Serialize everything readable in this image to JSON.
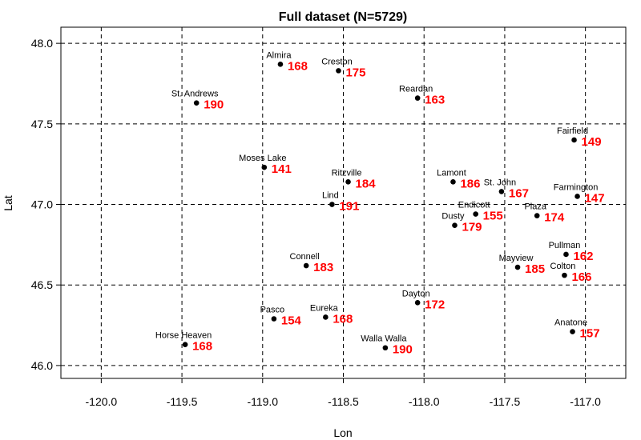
{
  "chart_data": {
    "type": "scatter",
    "title": "Full dataset (N=5729)",
    "xlabel": "Lon",
    "ylabel": "Lat",
    "xlim": [
      -120.25,
      -116.75
    ],
    "ylim": [
      45.92,
      48.1
    ],
    "xticks": [
      -120.0,
      -119.5,
      -119.0,
      -118.5,
      -118.0,
      -117.5,
      -117.0
    ],
    "xtick_labels": [
      "-120.0",
      "-119.5",
      "-119.0",
      "-118.5",
      "-118.0",
      "-117.5",
      "-117.0"
    ],
    "yticks": [
      46.0,
      46.5,
      47.0,
      47.5,
      48.0
    ],
    "ytick_labels": [
      "46.0",
      "46.5",
      "47.0",
      "47.5",
      "48.0"
    ],
    "grid": true,
    "point_color": "#000000",
    "value_color": "#ff0000",
    "points": [
      {
        "name": "Almira",
        "lon": -118.89,
        "lat": 47.87,
        "value": "168"
      },
      {
        "name": "Creston",
        "lon": -118.53,
        "lat": 47.83,
        "value": "175"
      },
      {
        "name": "St. Andrews",
        "lon": -119.41,
        "lat": 47.63,
        "value": "190"
      },
      {
        "name": "Reardan",
        "lon": -118.04,
        "lat": 47.66,
        "value": "163"
      },
      {
        "name": "Fairfield",
        "lon": -117.07,
        "lat": 47.4,
        "value": "149"
      },
      {
        "name": "Moses Lake",
        "lon": -118.99,
        "lat": 47.23,
        "value": "141"
      },
      {
        "name": "Ritzville",
        "lon": -118.47,
        "lat": 47.14,
        "value": "184"
      },
      {
        "name": "Lamont",
        "lon": -117.82,
        "lat": 47.14,
        "value": "186"
      },
      {
        "name": "St. John",
        "lon": -117.52,
        "lat": 47.08,
        "value": "167"
      },
      {
        "name": "Farmington",
        "lon": -117.05,
        "lat": 47.05,
        "value": "147"
      },
      {
        "name": "Lind",
        "lon": -118.57,
        "lat": 47.0,
        "value": "191"
      },
      {
        "name": "Endicott",
        "lon": -117.68,
        "lat": 46.94,
        "value": "155"
      },
      {
        "name": "Plaza",
        "lon": -117.3,
        "lat": 46.93,
        "value": "174"
      },
      {
        "name": "Dusty",
        "lon": -117.81,
        "lat": 46.87,
        "value": "179"
      },
      {
        "name": "Pullman",
        "lon": -117.12,
        "lat": 46.69,
        "value": "162"
      },
      {
        "name": "Connell",
        "lon": -118.73,
        "lat": 46.62,
        "value": "183"
      },
      {
        "name": "Mayview",
        "lon": -117.42,
        "lat": 46.61,
        "value": "185"
      },
      {
        "name": "Colton",
        "lon": -117.13,
        "lat": 46.56,
        "value": "166"
      },
      {
        "name": "Dayton",
        "lon": -118.04,
        "lat": 46.39,
        "value": "172"
      },
      {
        "name": "Pasco",
        "lon": -118.93,
        "lat": 46.29,
        "value": "154"
      },
      {
        "name": "Eureka",
        "lon": -118.61,
        "lat": 46.3,
        "value": "168"
      },
      {
        "name": "Anatone",
        "lon": -117.08,
        "lat": 46.21,
        "value": "157"
      },
      {
        "name": "Horse Heaven",
        "lon": -119.48,
        "lat": 46.13,
        "value": "168"
      },
      {
        "name": "Walla Walla",
        "lon": -118.24,
        "lat": 46.11,
        "value": "190"
      }
    ]
  }
}
